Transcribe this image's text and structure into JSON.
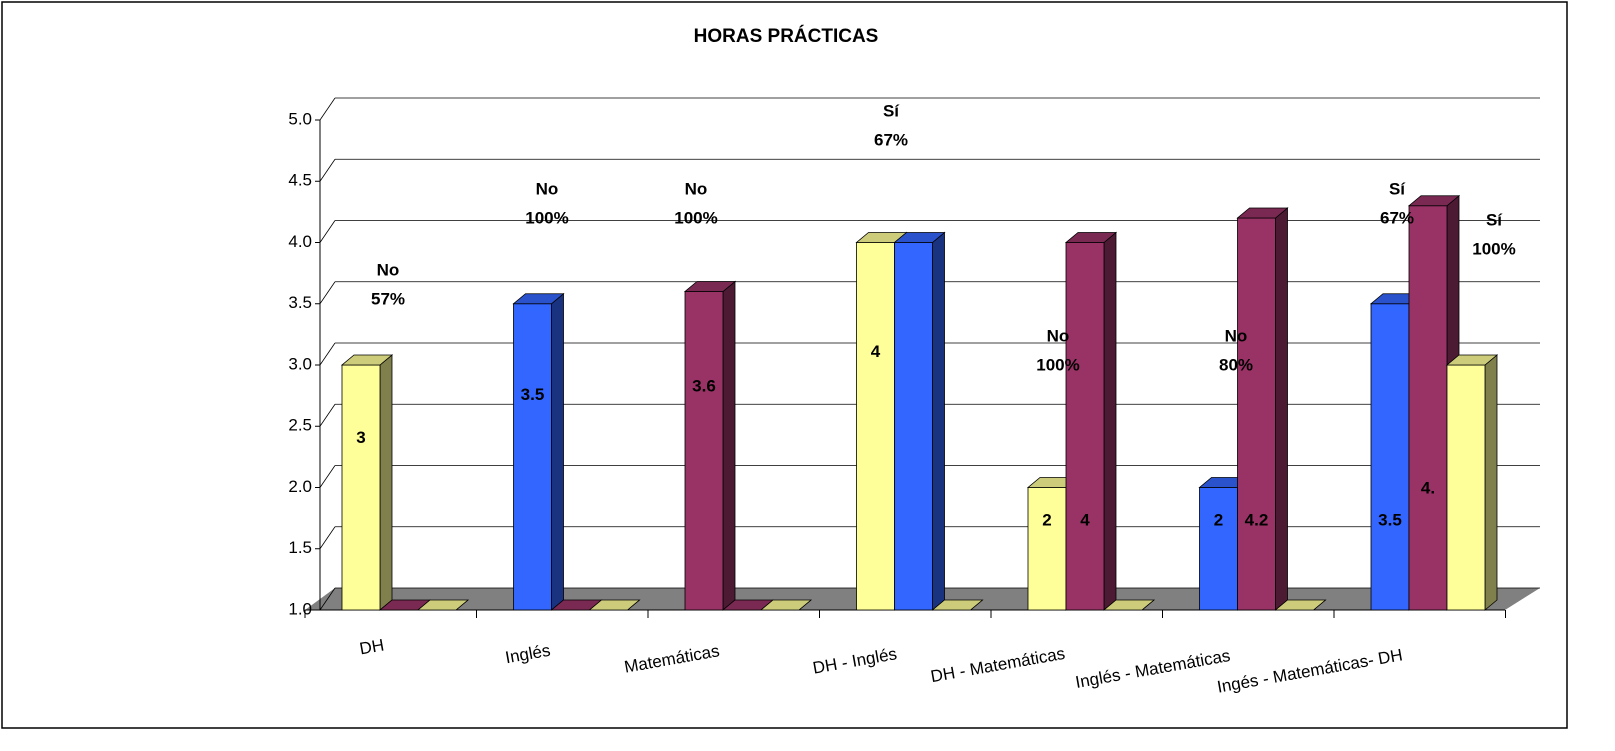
{
  "chart_data": {
    "type": "bar3d",
    "title": "HORAS PRÁCTICAS",
    "categories": [
      "DH",
      "Inglés",
      "Matemáticas",
      "DH - Inglés",
      "DH - Matemáticas",
      "Inglés - Matemáticas",
      "Ingés - Matemáticas- DH"
    ],
    "series": [
      {
        "colors": [
          "#ffff99",
          "#3366ff",
          "#993366",
          "#ffff99",
          "#ffff99",
          "#3366ff",
          "#3366ff"
        ],
        "values": [
          3,
          3.5,
          3.6,
          4,
          2,
          2,
          3.5
        ]
      },
      {
        "colors": [
          "#993366",
          "#993366",
          "#993366",
          "#3366ff",
          "#993366",
          "#993366",
          "#993366"
        ],
        "values": [
          1,
          1,
          1,
          4,
          4,
          4.2,
          4.3
        ],
        "value_labels": [
          null,
          null,
          null,
          null,
          "4",
          "4.2",
          "4."
        ]
      },
      {
        "colors": [
          "#ffff99",
          "#ffff99",
          "#ffff99",
          "#ffff99",
          "#ffff99",
          "#ffff99",
          "#ffff99"
        ],
        "values": [
          1,
          1,
          1,
          1,
          1,
          1,
          3
        ]
      }
    ],
    "annotations": [
      [
        "No",
        "57%"
      ],
      [
        "No",
        "100%"
      ],
      [
        "No",
        "100%"
      ],
      [
        "Sí",
        "67%"
      ],
      [
        "No",
        "100%"
      ],
      [
        "No",
        "80%"
      ],
      [
        "Sí",
        "67%"
      ],
      [
        "Sí",
        "100%"
      ]
    ],
    "ylim": [
      1,
      5
    ],
    "yticks": [
      {
        "value": 1,
        "label": "1.0"
      },
      {
        "value": 1.5,
        "label": "1.5"
      },
      {
        "value": 2,
        "label": "2.0"
      },
      {
        "value": 2.5,
        "label": "2.5"
      },
      {
        "value": 3,
        "label": "3.0"
      },
      {
        "value": 3.5,
        "label": "3.5"
      },
      {
        "value": 4,
        "label": "4.0"
      },
      {
        "value": 4.5,
        "label": "4.5"
      },
      {
        "value": 5,
        "label": "5.0"
      }
    ],
    "grid": true,
    "floor_color": "#808080"
  }
}
